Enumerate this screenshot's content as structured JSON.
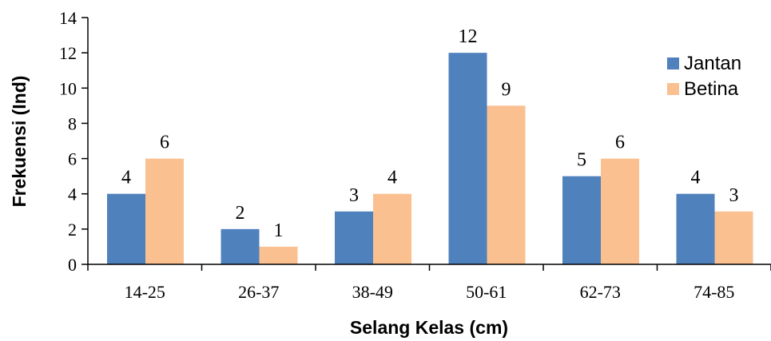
{
  "chart_data": {
    "type": "bar",
    "categories": [
      "14-25",
      "26-37",
      "38-49",
      "50-61",
      "62-73",
      "74-85"
    ],
    "series": [
      {
        "name": "Jantan",
        "values": [
          4,
          2,
          3,
          12,
          5,
          4
        ],
        "color": "#4f81bd"
      },
      {
        "name": "Betina",
        "values": [
          6,
          1,
          4,
          9,
          6,
          3
        ],
        "color": "#fac090"
      }
    ],
    "xlabel": "Selang Kelas (cm)",
    "ylabel": "Frekuensi (Ind)",
    "ylim": [
      0,
      14
    ],
    "yticks": [
      0,
      2,
      4,
      6,
      8,
      10,
      12,
      14
    ],
    "grid": false,
    "legend_position": "right",
    "data_labels": true
  }
}
